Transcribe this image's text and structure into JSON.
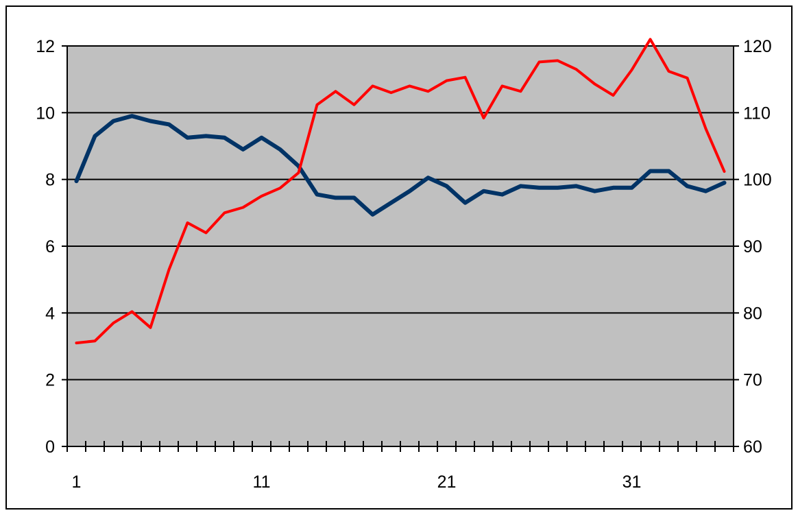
{
  "chart_data": {
    "type": "line",
    "title": "",
    "xlabel": "",
    "ylabel": "",
    "x": [
      1,
      2,
      3,
      4,
      5,
      6,
      7,
      8,
      9,
      10,
      11,
      12,
      13,
      14,
      15,
      16,
      17,
      18,
      19,
      20,
      21,
      22,
      23,
      24,
      25,
      26,
      27,
      28,
      29,
      30,
      31,
      32,
      33,
      34,
      35,
      36
    ],
    "x_tick_labels": [
      "1",
      "11",
      "21",
      "31"
    ],
    "y_left_ticks": [
      "0",
      "2",
      "4",
      "6",
      "8",
      "10",
      "12"
    ],
    "y_right_ticks": [
      "60",
      "70",
      "80",
      "90",
      "100",
      "110",
      "120"
    ],
    "ylim_left": [
      0,
      12
    ],
    "ylim_right": [
      60,
      120
    ],
    "grid": "horizontal",
    "plot_background": "#c0c0c0",
    "series": [
      {
        "axis": "left",
        "color": "#003366",
        "values": [
          7.95,
          9.3,
          9.75,
          9.9,
          9.75,
          9.65,
          9.25,
          9.3,
          9.25,
          8.9,
          9.25,
          8.9,
          8.4,
          7.55,
          7.45,
          7.45,
          6.95,
          7.3,
          7.65,
          8.05,
          7.8,
          7.3,
          7.65,
          7.55,
          7.8,
          7.75,
          7.75,
          7.8,
          7.65,
          7.75,
          7.75,
          8.25,
          8.25,
          7.8,
          7.65,
          7.9
        ]
      },
      {
        "axis": "right",
        "color": "#ff0000",
        "values": [
          75.5,
          75.8,
          78.5,
          80.2,
          77.8,
          86.5,
          93.5,
          92.0,
          95.0,
          95.8,
          97.5,
          98.7,
          101.0,
          111.2,
          113.2,
          111.2,
          114.0,
          113.0,
          114.0,
          113.2,
          114.8,
          115.3,
          109.2,
          114.0,
          113.2,
          117.6,
          117.8,
          116.5,
          114.3,
          112.6,
          116.4,
          121.0,
          116.2,
          115.2,
          107.6,
          101.2
        ]
      }
    ]
  }
}
